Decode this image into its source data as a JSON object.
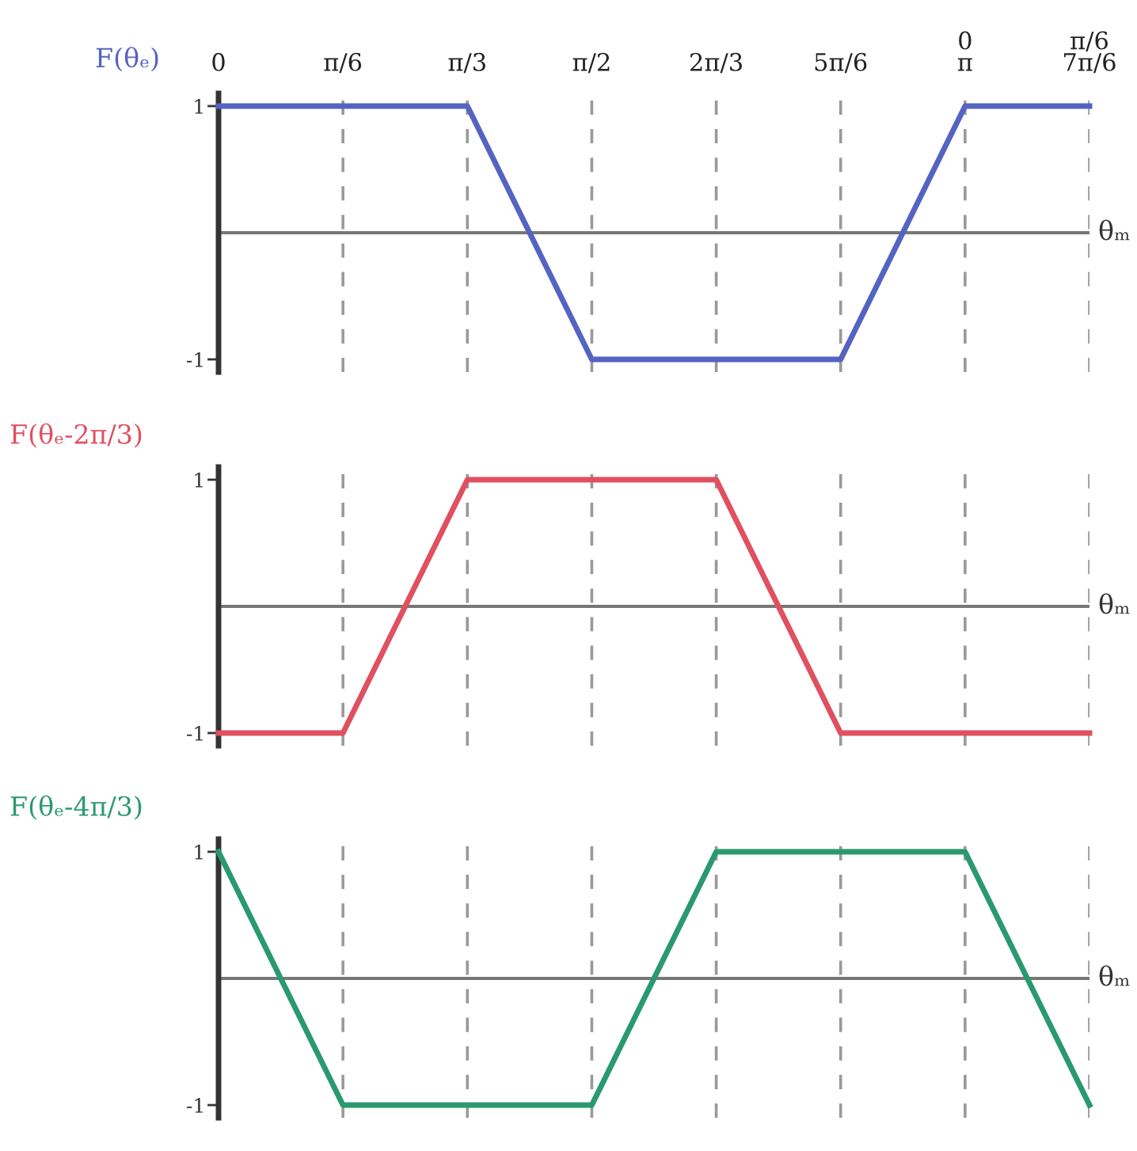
{
  "chart_data": [
    {
      "type": "line",
      "title": "F(θₑ)",
      "xlabel": "θₘ",
      "categories": [
        "0",
        "π/6",
        "π/3",
        "π/2",
        "2π/3",
        "5π/6",
        "0\nπ",
        "π/6\n7π/6"
      ],
      "ylim": [
        -1.1,
        1.1
      ],
      "yticks": [
        -1,
        1
      ],
      "grid": "x",
      "series": [
        {
          "color": "#5563c1",
          "values": [
            1,
            1,
            1,
            -1,
            -1,
            -1,
            1,
            1
          ]
        }
      ]
    },
    {
      "type": "line",
      "title": "F(θₑ-2π/3)",
      "xlabel": "θₘ",
      "categories": [
        null,
        null,
        null,
        null,
        null,
        null,
        null,
        null
      ],
      "ylim": [
        -1.1,
        1.1
      ],
      "yticks": [
        -1,
        1
      ],
      "grid": "x",
      "series": [
        {
          "color": "#e0505f",
          "values": [
            -1,
            -1,
            1,
            1,
            1,
            -1,
            -1,
            -1
          ]
        }
      ]
    },
    {
      "type": "line",
      "title": "F(θₑ-4π/3)",
      "xlabel": "θₘ",
      "categories": [
        null,
        null,
        null,
        null,
        null,
        null,
        null,
        null
      ],
      "ylim": [
        -1.1,
        1.1
      ],
      "yticks": [
        -1,
        1
      ],
      "grid": "x",
      "series": [
        {
          "color": "#2a9a6e",
          "values": [
            1,
            -1,
            -1,
            -1,
            1,
            1,
            1,
            -1
          ]
        }
      ]
    }
  ]
}
